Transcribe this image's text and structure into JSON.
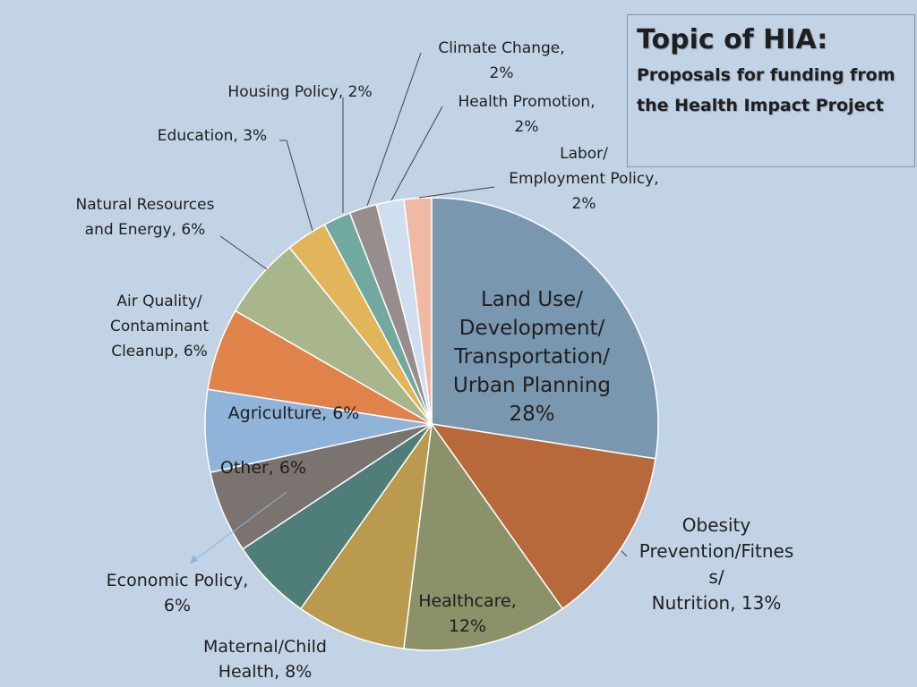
{
  "title_box": {
    "title": "Topic of HIA:",
    "subtitle": "Proposals for funding from the Health Impact Project"
  },
  "chart_data": {
    "type": "pie",
    "title": "Topic of HIA:",
    "subtitle": "Proposals for funding from the Health Impact Project",
    "start_angle_deg": 0,
    "direction": "clockwise",
    "slices": [
      {
        "label_lines": [
          "Land Use/",
          "Development/",
          "Transportation/",
          "Urban Planning",
          "28%"
        ],
        "value": 28,
        "color": "#7a97b0"
      },
      {
        "label_lines": [
          "Obesity",
          "Prevention/Fitnes",
          "s/",
          "Nutrition, 13%"
        ],
        "value": 13,
        "color": "#b8693c"
      },
      {
        "label_lines": [
          "Healthcare,",
          "12%"
        ],
        "value": 12,
        "color": "#8b9168"
      },
      {
        "label_lines": [
          "Maternal/Child",
          "Health, 8%"
        ],
        "value": 8,
        "color": "#b99a4e"
      },
      {
        "label_lines": [
          "Economic Policy,",
          "6%"
        ],
        "value": 6,
        "color": "#4f7d78"
      },
      {
        "label_lines": [
          "Other, 6%"
        ],
        "value": 6,
        "color": "#7b7370"
      },
      {
        "label_lines": [
          "Agriculture, 6%"
        ],
        "value": 6,
        "color": "#8fb3d9"
      },
      {
        "label_lines": [
          "Air Quality/",
          "Contaminant",
          "Cleanup, 6%"
        ],
        "value": 6,
        "color": "#e0834a"
      },
      {
        "label_lines": [
          "Natural Resources",
          "and Energy, 6%"
        ],
        "value": 6,
        "color": "#a9b68b"
      },
      {
        "label_lines": [
          "Education, 3%"
        ],
        "value": 3,
        "color": "#e3b55a"
      },
      {
        "label_lines": [
          "Housing Policy, 2%"
        ],
        "value": 2,
        "color": "#6fa99f"
      },
      {
        "label_lines": [
          "Climate Change,",
          "2%"
        ],
        "value": 2,
        "color": "#968d8c"
      },
      {
        "label_lines": [
          "Health Promotion,",
          "2%"
        ],
        "value": 2,
        "color": "#cfdff0"
      },
      {
        "label_lines": [
          "Labor/",
          "Employment Policy,",
          "2%"
        ],
        "value": 2,
        "color": "#f0b9a4"
      }
    ]
  }
}
